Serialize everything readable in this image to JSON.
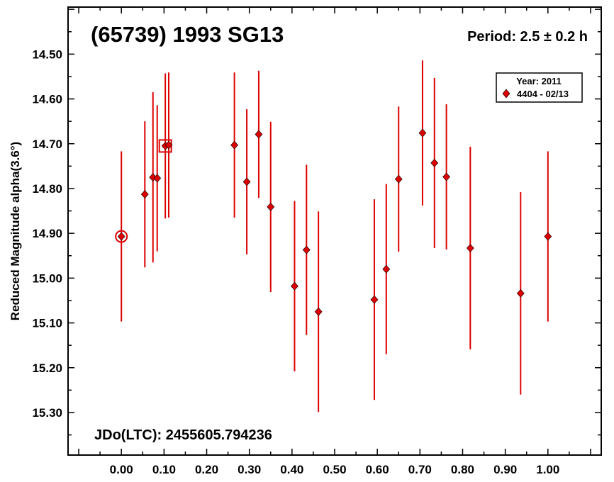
{
  "chart_data": {
    "type": "scatter",
    "title": "(65739) 1993 SG13",
    "period_label": "Period: 2.5 ± 0.2 h",
    "jdo_label": "JDo(LTC): 2455605.794236",
    "ylabel": "Reduced Magnitude alpha(3.6°)",
    "xlabel": "",
    "xlim": [
      -0.125,
      1.125
    ],
    "ylim": [
      15.395,
      14.395
    ],
    "y_inverted": true,
    "x_ticks": [
      0.0,
      0.1,
      0.2,
      0.3,
      0.4,
      0.5,
      0.6,
      0.7,
      0.8,
      0.9,
      1.0
    ],
    "x_tick_labels": [
      "0.00",
      "0.10",
      "0.20",
      "0.30",
      "0.40",
      "0.50",
      "0.60",
      "0.70",
      "0.80",
      "0.90",
      "1.00"
    ],
    "y_ticks": [
      14.5,
      14.6,
      14.7,
      14.8,
      14.9,
      15.0,
      15.1,
      15.2,
      15.3
    ],
    "y_tick_labels": [
      "14.50",
      "14.60",
      "14.70",
      "14.80",
      "14.90",
      "15.00",
      "15.10",
      "15.20",
      "15.30"
    ],
    "legend": {
      "title": "Year: 2011",
      "placement": "top-right",
      "entries": [
        "4404 - 02/13"
      ]
    },
    "marker_color": "#dd0000",
    "series": [
      {
        "name": "4404 - 02/13",
        "points": [
          {
            "x": 0.0,
            "y": 14.907,
            "err": 0.19,
            "marker": "circled"
          },
          {
            "x": 0.055,
            "y": 14.813,
            "err": 0.163
          },
          {
            "x": 0.074,
            "y": 14.775,
            "err": 0.19
          },
          {
            "x": 0.084,
            "y": 14.777,
            "err": 0.163
          },
          {
            "x": 0.103,
            "y": 14.705,
            "err": 0.162
          },
          {
            "x": 0.111,
            "y": 14.703,
            "err": 0.162
          },
          {
            "x": 0.265,
            "y": 14.703,
            "err": 0.162
          },
          {
            "x": 0.294,
            "y": 14.785,
            "err": 0.162
          },
          {
            "x": 0.322,
            "y": 14.679,
            "err": 0.142
          },
          {
            "x": 0.35,
            "y": 14.841,
            "err": 0.19
          },
          {
            "x": 0.406,
            "y": 15.018,
            "err": 0.19
          },
          {
            "x": 0.434,
            "y": 14.937,
            "err": 0.19
          },
          {
            "x": 0.462,
            "y": 15.075,
            "err": 0.224
          },
          {
            "x": 0.593,
            "y": 15.048,
            "err": 0.224
          },
          {
            "x": 0.621,
            "y": 14.98,
            "err": 0.19
          },
          {
            "x": 0.65,
            "y": 14.779,
            "err": 0.162
          },
          {
            "x": 0.706,
            "y": 14.676,
            "err": 0.162
          },
          {
            "x": 0.734,
            "y": 14.743,
            "err": 0.19
          },
          {
            "x": 0.762,
            "y": 14.774,
            "err": 0.162
          },
          {
            "x": 0.818,
            "y": 14.933,
            "err": 0.226
          },
          {
            "x": 0.936,
            "y": 15.034,
            "err": 0.226
          },
          {
            "x": 1.0,
            "y": 14.907,
            "err": 0.19
          }
        ]
      }
    ],
    "annotations": [
      {
        "type": "square-highlight",
        "x": 0.103,
        "y": 14.705
      }
    ]
  }
}
